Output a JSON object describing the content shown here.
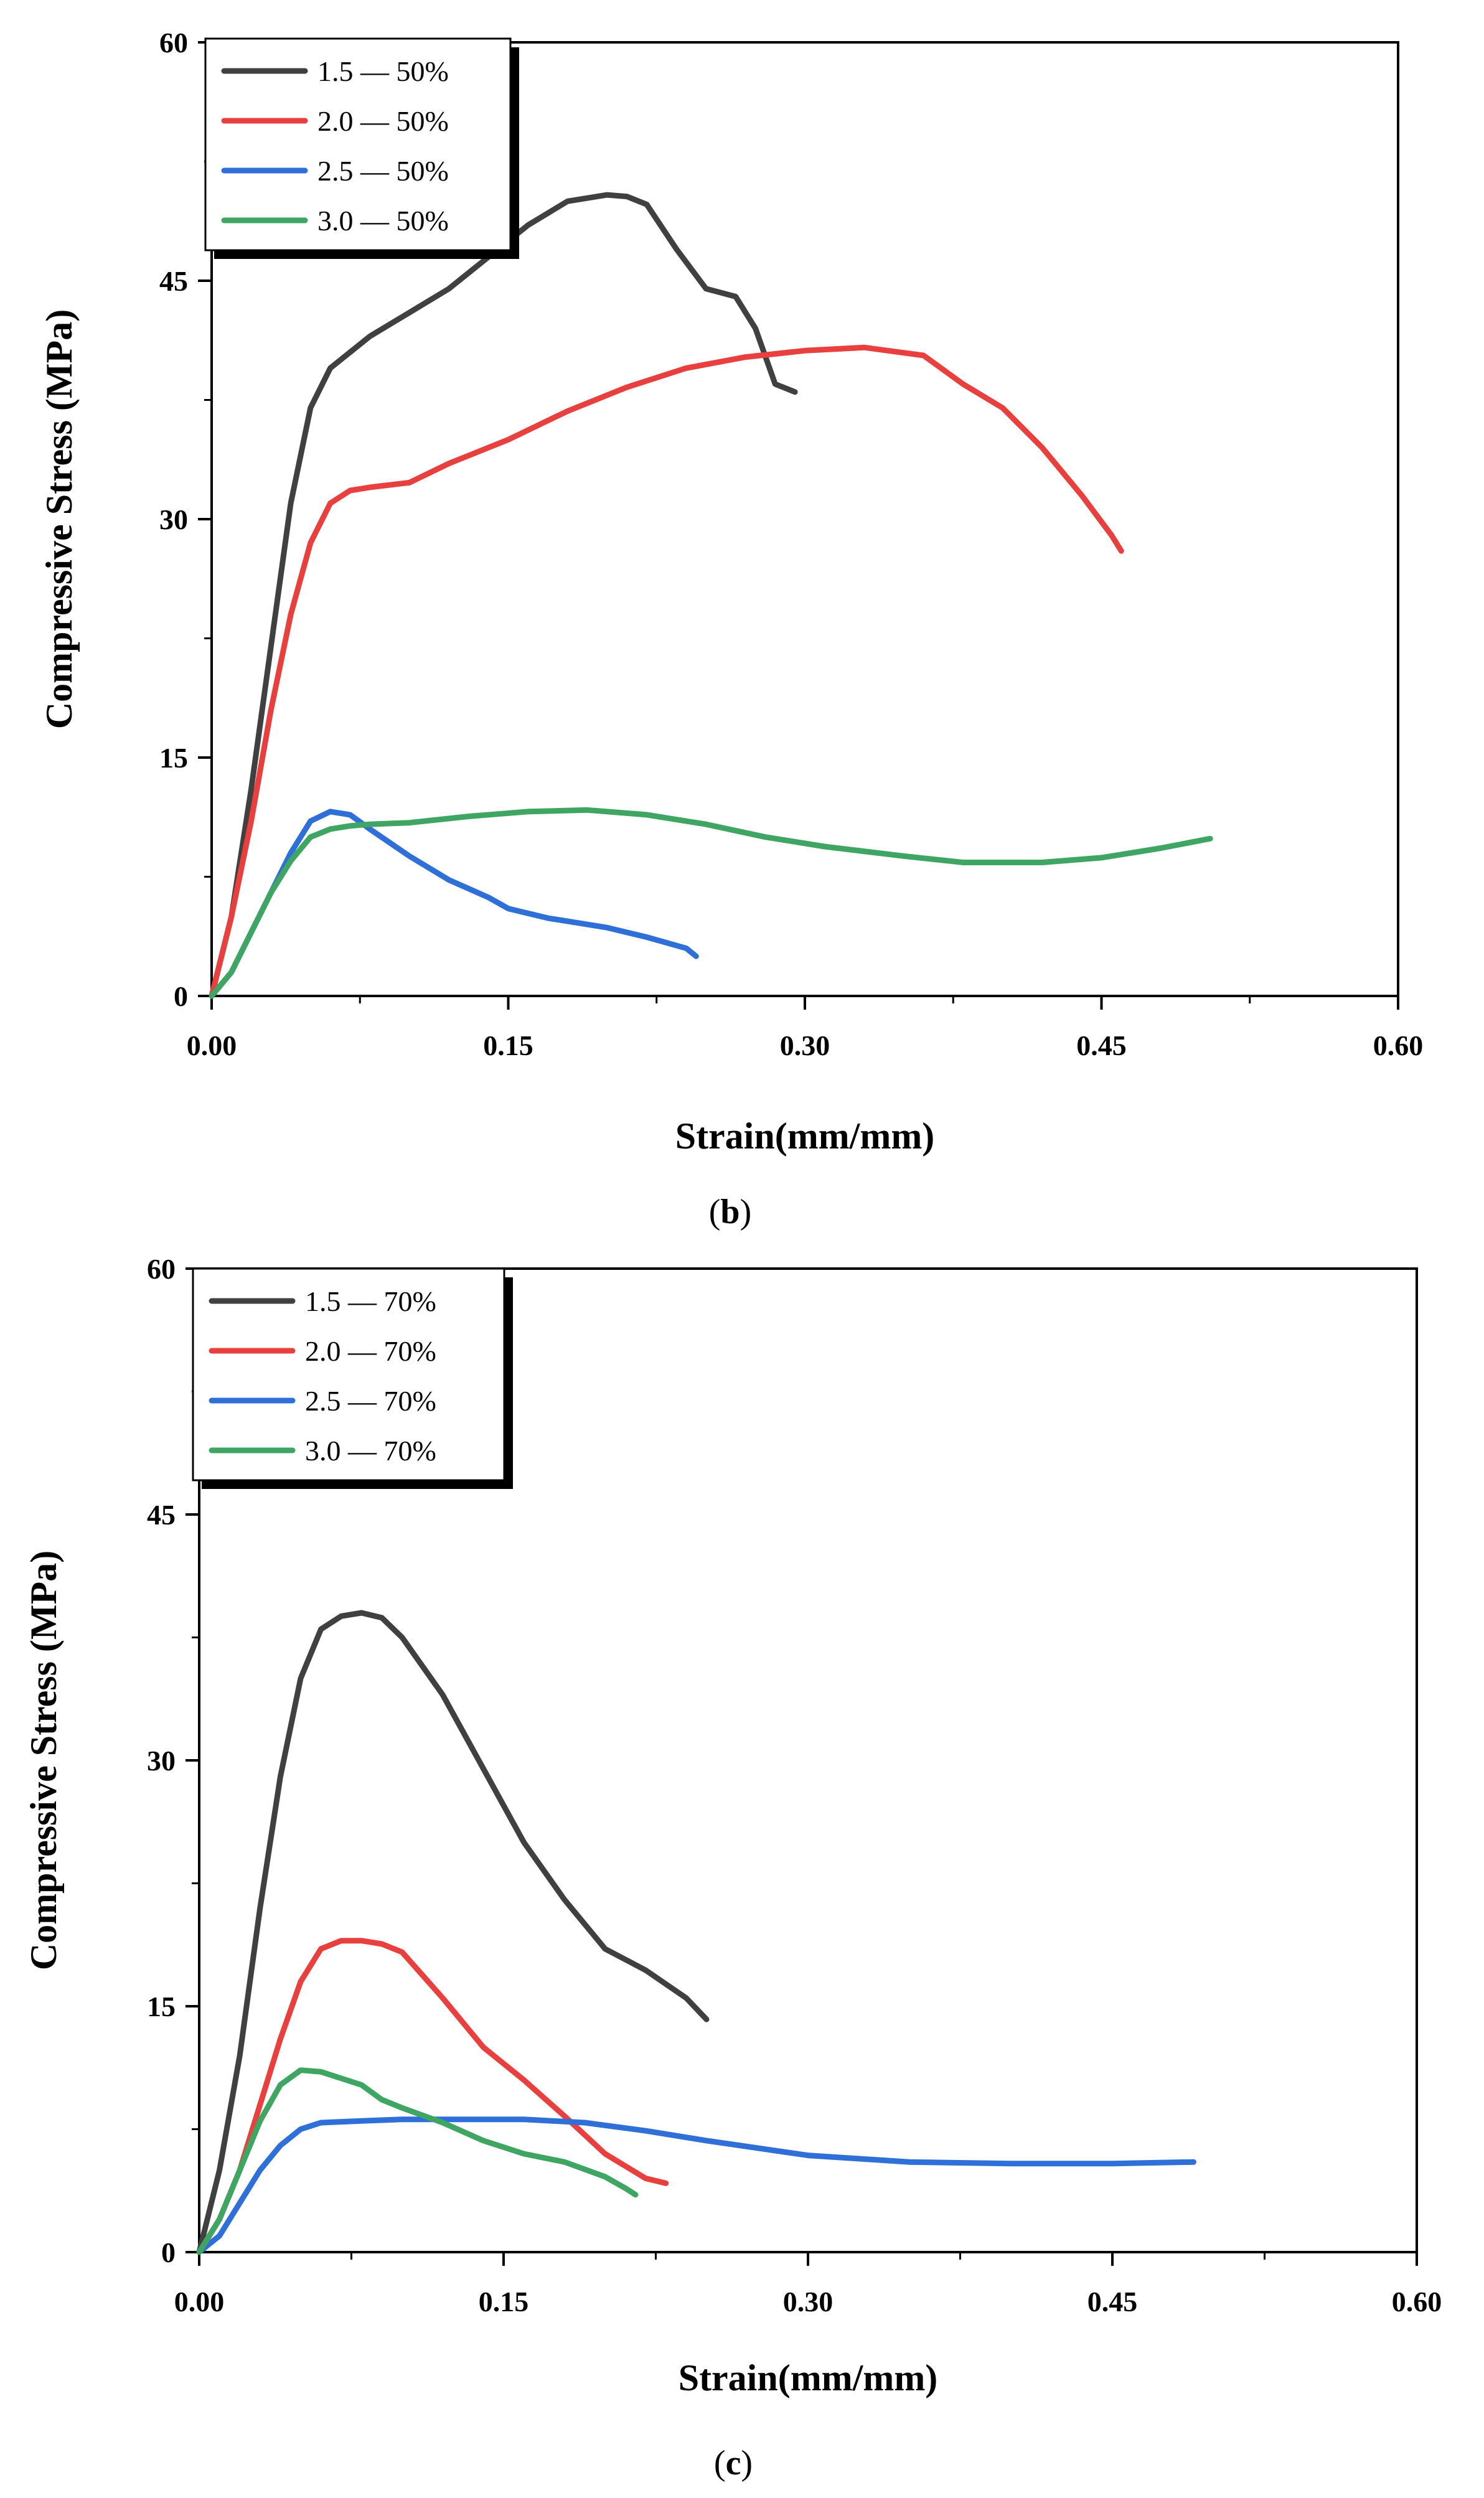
{
  "chart_data": [
    {
      "type": "line",
      "panel_label": {
        "open": "(",
        "letter": "b",
        "close": ")"
      },
      "xlabel": "Strain(mm/mm)",
      "ylabel": "Compressive Stress (MPa)",
      "xlim": [
        0,
        0.6
      ],
      "ylim": [
        0,
        60
      ],
      "xticks": [
        "0.00",
        "0.15",
        "0.30",
        "0.45",
        "0.60"
      ],
      "xtick_values": [
        0,
        0.15,
        0.3,
        0.45,
        0.6
      ],
      "yticks": [
        "0",
        "15",
        "30",
        "45",
        "60"
      ],
      "ytick_values": [
        0,
        15,
        30,
        45,
        60
      ],
      "legend_position": "top-left",
      "series": [
        {
          "name": "1.5 — 50%",
          "color": "#404040",
          "x": [
            0,
            0.01,
            0.02,
            0.03,
            0.04,
            0.05,
            0.06,
            0.08,
            0.1,
            0.12,
            0.14,
            0.16,
            0.18,
            0.2,
            0.21,
            0.22,
            0.235,
            0.25,
            0.265,
            0.275,
            0.285,
            0.295
          ],
          "y": [
            0,
            5,
            13,
            22,
            31,
            37,
            39.5,
            41.5,
            43,
            44.5,
            46.5,
            48.5,
            50,
            50.4,
            50.3,
            49.8,
            47,
            44.5,
            44,
            42,
            38.5,
            38
          ]
        },
        {
          "name": "2.0 — 50%",
          "color": "#e8403e",
          "x": [
            0,
            0.01,
            0.02,
            0.03,
            0.04,
            0.05,
            0.06,
            0.07,
            0.08,
            0.1,
            0.12,
            0.15,
            0.18,
            0.21,
            0.24,
            0.27,
            0.3,
            0.33,
            0.36,
            0.38,
            0.4,
            0.42,
            0.44,
            0.455,
            0.46
          ],
          "y": [
            0,
            5,
            11,
            18,
            24,
            28.5,
            31,
            31.8,
            32,
            32.3,
            33.5,
            35,
            36.8,
            38.3,
            39.5,
            40.2,
            40.6,
            40.8,
            40.3,
            38.5,
            37,
            34.5,
            31.5,
            29,
            28
          ]
        },
        {
          "name": "2.5 — 50%",
          "color": "#2f6fd8",
          "x": [
            0,
            0.01,
            0.02,
            0.03,
            0.04,
            0.05,
            0.06,
            0.07,
            0.08,
            0.1,
            0.12,
            0.14,
            0.15,
            0.17,
            0.2,
            0.22,
            0.24,
            0.245
          ],
          "y": [
            0,
            1.5,
            4,
            6.5,
            9,
            11,
            11.6,
            11.4,
            10.5,
            8.8,
            7.3,
            6.2,
            5.5,
            4.9,
            4.3,
            3.7,
            3,
            2.5
          ]
        },
        {
          "name": "3.0 — 50%",
          "color": "#3ea662",
          "x": [
            0,
            0.01,
            0.02,
            0.03,
            0.04,
            0.05,
            0.06,
            0.07,
            0.08,
            0.1,
            0.13,
            0.16,
            0.19,
            0.22,
            0.25,
            0.28,
            0.31,
            0.35,
            0.38,
            0.42,
            0.45,
            0.48,
            0.505
          ],
          "y": [
            0,
            1.5,
            4,
            6.5,
            8.5,
            10,
            10.5,
            10.7,
            10.8,
            10.9,
            11.3,
            11.6,
            11.7,
            11.4,
            10.8,
            10,
            9.4,
            8.8,
            8.4,
            8.4,
            8.7,
            9.3,
            9.9
          ]
        }
      ]
    },
    {
      "type": "line",
      "panel_label": {
        "open": "(",
        "letter": "c",
        "close": ")"
      },
      "xlabel": "Strain(mm/mm)",
      "ylabel": "Compressive Stress (MPa)",
      "xlim": [
        0,
        0.6
      ],
      "ylim": [
        0,
        60
      ],
      "xticks": [
        "0.00",
        "0.15",
        "0.30",
        "0.45",
        "0.60"
      ],
      "xtick_values": [
        0,
        0.15,
        0.3,
        0.45,
        0.6
      ],
      "yticks": [
        "0",
        "15",
        "30",
        "45",
        "60"
      ],
      "ytick_values": [
        0,
        15,
        30,
        45,
        60
      ],
      "legend_position": "top-left",
      "series": [
        {
          "name": "1.5 — 70%",
          "color": "#404040",
          "x": [
            0,
            0.01,
            0.02,
            0.03,
            0.04,
            0.05,
            0.06,
            0.07,
            0.08,
            0.09,
            0.1,
            0.12,
            0.14,
            0.16,
            0.18,
            0.2,
            0.22,
            0.24,
            0.25
          ],
          "y": [
            0,
            5,
            12,
            21,
            29,
            35,
            38,
            38.8,
            39,
            38.7,
            37.5,
            34,
            29.5,
            25,
            21.5,
            18.5,
            17.2,
            15.5,
            14.2
          ]
        },
        {
          "name": "2.0 — 70%",
          "color": "#e8403e",
          "x": [
            0,
            0.01,
            0.02,
            0.03,
            0.04,
            0.05,
            0.06,
            0.07,
            0.08,
            0.09,
            0.1,
            0.12,
            0.14,
            0.16,
            0.18,
            0.2,
            0.22,
            0.23
          ],
          "y": [
            0,
            2,
            5,
            9,
            13,
            16.5,
            18.5,
            19,
            19,
            18.8,
            18.3,
            15.5,
            12.5,
            10.5,
            8.3,
            6,
            4.5,
            4.2
          ]
        },
        {
          "name": "2.5 — 70%",
          "color": "#2f6fd8",
          "x": [
            0,
            0.01,
            0.02,
            0.03,
            0.04,
            0.05,
            0.06,
            0.08,
            0.1,
            0.13,
            0.16,
            0.19,
            0.22,
            0.25,
            0.3,
            0.35,
            0.4,
            0.45,
            0.49
          ],
          "y": [
            0,
            1,
            3,
            5,
            6.5,
            7.5,
            7.9,
            8,
            8.1,
            8.1,
            8.1,
            7.9,
            7.4,
            6.8,
            5.9,
            5.5,
            5.4,
            5.4,
            5.5
          ]
        },
        {
          "name": "3.0 — 70%",
          "color": "#3ea662",
          "x": [
            0,
            0.01,
            0.02,
            0.03,
            0.04,
            0.05,
            0.06,
            0.07,
            0.08,
            0.09,
            0.1,
            0.12,
            0.14,
            0.16,
            0.18,
            0.2,
            0.21,
            0.215
          ],
          "y": [
            0,
            2,
            5,
            8,
            10.2,
            11.1,
            11,
            10.6,
            10.2,
            9.3,
            8.8,
            7.9,
            6.8,
            6,
            5.5,
            4.6,
            3.9,
            3.5
          ]
        }
      ]
    }
  ]
}
